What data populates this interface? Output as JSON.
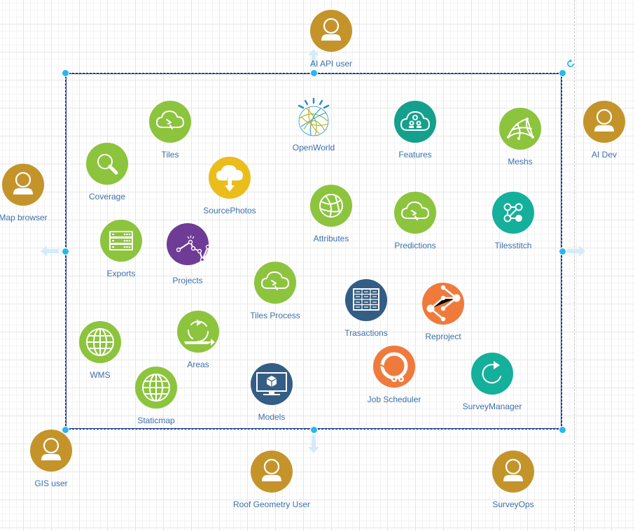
{
  "nodes": [
    {
      "id": "ai-api-user",
      "label": "AI  API user",
      "kind": "user",
      "icon": "user-icon",
      "color": "#c4942b"
    },
    {
      "id": "ai-dev",
      "label": "AI Dev",
      "kind": "user",
      "icon": "user-icon",
      "color": "#c4942b"
    },
    {
      "id": "map-browser",
      "label": "Map browser",
      "kind": "user",
      "icon": "user-icon",
      "color": "#c4942b"
    },
    {
      "id": "gis-user",
      "label": "GIS user",
      "kind": "user",
      "icon": "user-icon",
      "color": "#c4942b"
    },
    {
      "id": "roof-geometry-user",
      "label": "Roof Geometry User",
      "kind": "user",
      "icon": "user-icon",
      "color": "#c4942b"
    },
    {
      "id": "surveyops",
      "label": "SurveyOps",
      "kind": "user",
      "icon": "user-icon",
      "color": "#c4942b"
    },
    {
      "id": "tiles",
      "label": "Tiles",
      "kind": "service",
      "icon": "cloud-sync-icon",
      "color": "#8cc43d"
    },
    {
      "id": "coverage",
      "label": "Coverage",
      "kind": "service",
      "icon": "magnifier-icon",
      "color": "#8cc43d"
    },
    {
      "id": "sourcephotos",
      "label": "SourcePhotos",
      "kind": "service",
      "icon": "cloud-download-icon",
      "color": "#ebbd1b"
    },
    {
      "id": "openworld",
      "label": "OpenWorld",
      "kind": "service",
      "icon": "watson-globe-icon",
      "color": "#3aa0d9"
    },
    {
      "id": "features",
      "label": "Features",
      "kind": "service",
      "icon": "cloud-robot-icon",
      "color": "#14a08c"
    },
    {
      "id": "meshs",
      "label": "Meshs",
      "kind": "service",
      "icon": "mesh-icon",
      "color": "#8cc43d"
    },
    {
      "id": "attributes",
      "label": "Attributes",
      "kind": "service",
      "icon": "sphere-icon",
      "color": "#8cc43d"
    },
    {
      "id": "predictions",
      "label": "Predictions",
      "kind": "service",
      "icon": "cloud-sync-icon",
      "color": "#8cc43d"
    },
    {
      "id": "tilesstitch",
      "label": "Tilesstitch",
      "kind": "service",
      "icon": "nodes-icon",
      "color": "#14b09c"
    },
    {
      "id": "exports",
      "label": "Exports",
      "kind": "service",
      "icon": "server-rack-icon",
      "color": "#8cc43d"
    },
    {
      "id": "projects",
      "label": "Projects",
      "kind": "service",
      "icon": "line-chart-icon",
      "color": "#6e3c96"
    },
    {
      "id": "tiles-process",
      "label": "Tiles Process",
      "kind": "service",
      "icon": "cloud-sync-icon",
      "color": "#8cc43d"
    },
    {
      "id": "trasactions",
      "label": "Trasactions",
      "kind": "service",
      "icon": "table-grid-icon",
      "color": "#335d84"
    },
    {
      "id": "reproject",
      "label": "Reproject",
      "kind": "service",
      "icon": "branch-icon",
      "color": "#f07a3c"
    },
    {
      "id": "wms",
      "label": "WMS",
      "kind": "service",
      "icon": "globe-icon",
      "color": "#8cc43d"
    },
    {
      "id": "areas",
      "label": "Areas",
      "kind": "service",
      "icon": "recycle-icon",
      "color": "#8cc43d"
    },
    {
      "id": "staticmap",
      "label": "Staticmap",
      "kind": "service",
      "icon": "globe-icon",
      "color": "#8cc43d"
    },
    {
      "id": "models",
      "label": "Models",
      "kind": "service",
      "icon": "monitor-cube-icon",
      "color": "#335d84"
    },
    {
      "id": "job-scheduler",
      "label": "Job Scheduler",
      "kind": "service",
      "icon": "gear-cycle-icon",
      "color": "#f07a3c"
    },
    {
      "id": "surveymanager",
      "label": "SurveyManager",
      "kind": "service",
      "icon": "refresh-icon",
      "color": "#14b09c"
    }
  ],
  "colors": {
    "label_text": "#3d6faa",
    "selection_handle": "#29b6f2",
    "selection_border": "#1a3b8c",
    "hint_arrow": "#d4ecfa"
  }
}
